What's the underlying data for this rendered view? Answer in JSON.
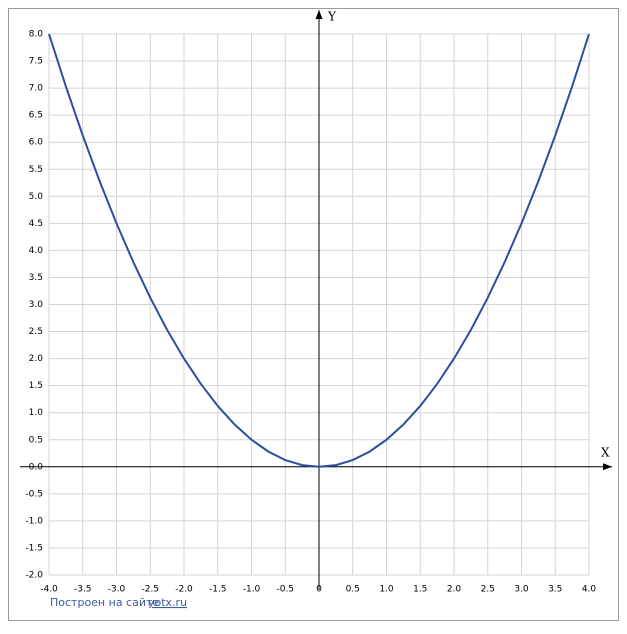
{
  "chart_data": {
    "type": "line",
    "x_label": "X",
    "y_label": "Y",
    "footer_text": "Построен на сайте",
    "footer_link": "yotx.ru",
    "xlim": [
      -4,
      4
    ],
    "ylim": [
      -2,
      8
    ],
    "grid": true,
    "xticks": [
      {
        "value": -4,
        "label": "-4.0"
      },
      {
        "value": -3.5,
        "label": "-3.5"
      },
      {
        "value": -3,
        "label": "-3.0"
      },
      {
        "value": -2.5,
        "label": "-2.5"
      },
      {
        "value": -2,
        "label": "-2.0"
      },
      {
        "value": -1.5,
        "label": "-1.5"
      },
      {
        "value": -1,
        "label": "-1.0"
      },
      {
        "value": -0.5,
        "label": "-0.5"
      },
      0,
      {
        "value": 0.5,
        "label": "0.5"
      },
      {
        "value": 1,
        "label": "1.0"
      },
      {
        "value": 1.5,
        "label": "1.5"
      },
      {
        "value": 2,
        "label": "2.0"
      },
      {
        "value": 2.5,
        "label": "2.5"
      },
      {
        "value": 3,
        "label": "3.0"
      },
      {
        "value": 3.5,
        "label": "3.5"
      },
      {
        "value": 4,
        "label": "4.0"
      }
    ],
    "yticks": [
      {
        "value": -2,
        "label": "-2.0"
      },
      {
        "value": -1.5,
        "label": "-1.5"
      },
      {
        "value": -1,
        "label": "-1.0"
      },
      {
        "value": -0.5,
        "label": "-0.5"
      },
      {
        "value": 0,
        "label": "0.0"
      },
      {
        "value": 0.5,
        "label": "0.5"
      },
      {
        "value": 1,
        "label": "1.0"
      },
      {
        "value": 1.5,
        "label": "1.5"
      },
      {
        "value": 2,
        "label": "2.0"
      },
      {
        "value": 2.5,
        "label": "2.5"
      },
      {
        "value": 3,
        "label": "3.0"
      },
      {
        "value": 3.5,
        "label": "3.5"
      },
      {
        "value": 4,
        "label": "4.0"
      },
      {
        "value": 4.5,
        "label": "4.5"
      },
      {
        "value": 5,
        "label": "5.0"
      },
      {
        "value": 5.5,
        "label": "5.5"
      },
      {
        "value": 6,
        "label": "6.0"
      },
      {
        "value": 6.5,
        "label": "6.5"
      },
      {
        "value": 7,
        "label": "7.0"
      },
      {
        "value": 7.5,
        "label": "7.5"
      },
      {
        "value": 8,
        "label": "8.0"
      }
    ],
    "x": [
      -4,
      -3.75,
      -3.5,
      -3.25,
      -3,
      -2.75,
      -2.5,
      -2.25,
      -2,
      -1.75,
      -1.5,
      -1.25,
      -1,
      -0.75,
      -0.5,
      -0.25,
      0,
      0.25,
      0.5,
      0.75,
      1,
      1.25,
      1.5,
      1.75,
      2,
      2.25,
      2.5,
      2.75,
      3,
      3.25,
      3.5,
      3.75,
      4
    ],
    "series": [
      {
        "color": "#2b4f9e",
        "values": [
          8,
          7.03125,
          6.125,
          5.28125,
          4.5,
          3.78125,
          3.125,
          2.53125,
          2,
          1.53125,
          1.125,
          0.78125,
          0.5,
          0.28125,
          0.125,
          0.03125,
          0,
          0.03125,
          0.125,
          0.28125,
          0.5,
          0.78125,
          1.125,
          1.53125,
          2,
          2.53125,
          3.125,
          3.78125,
          4.5,
          5.28125,
          6.125,
          7.03125,
          8
        ]
      }
    ]
  }
}
